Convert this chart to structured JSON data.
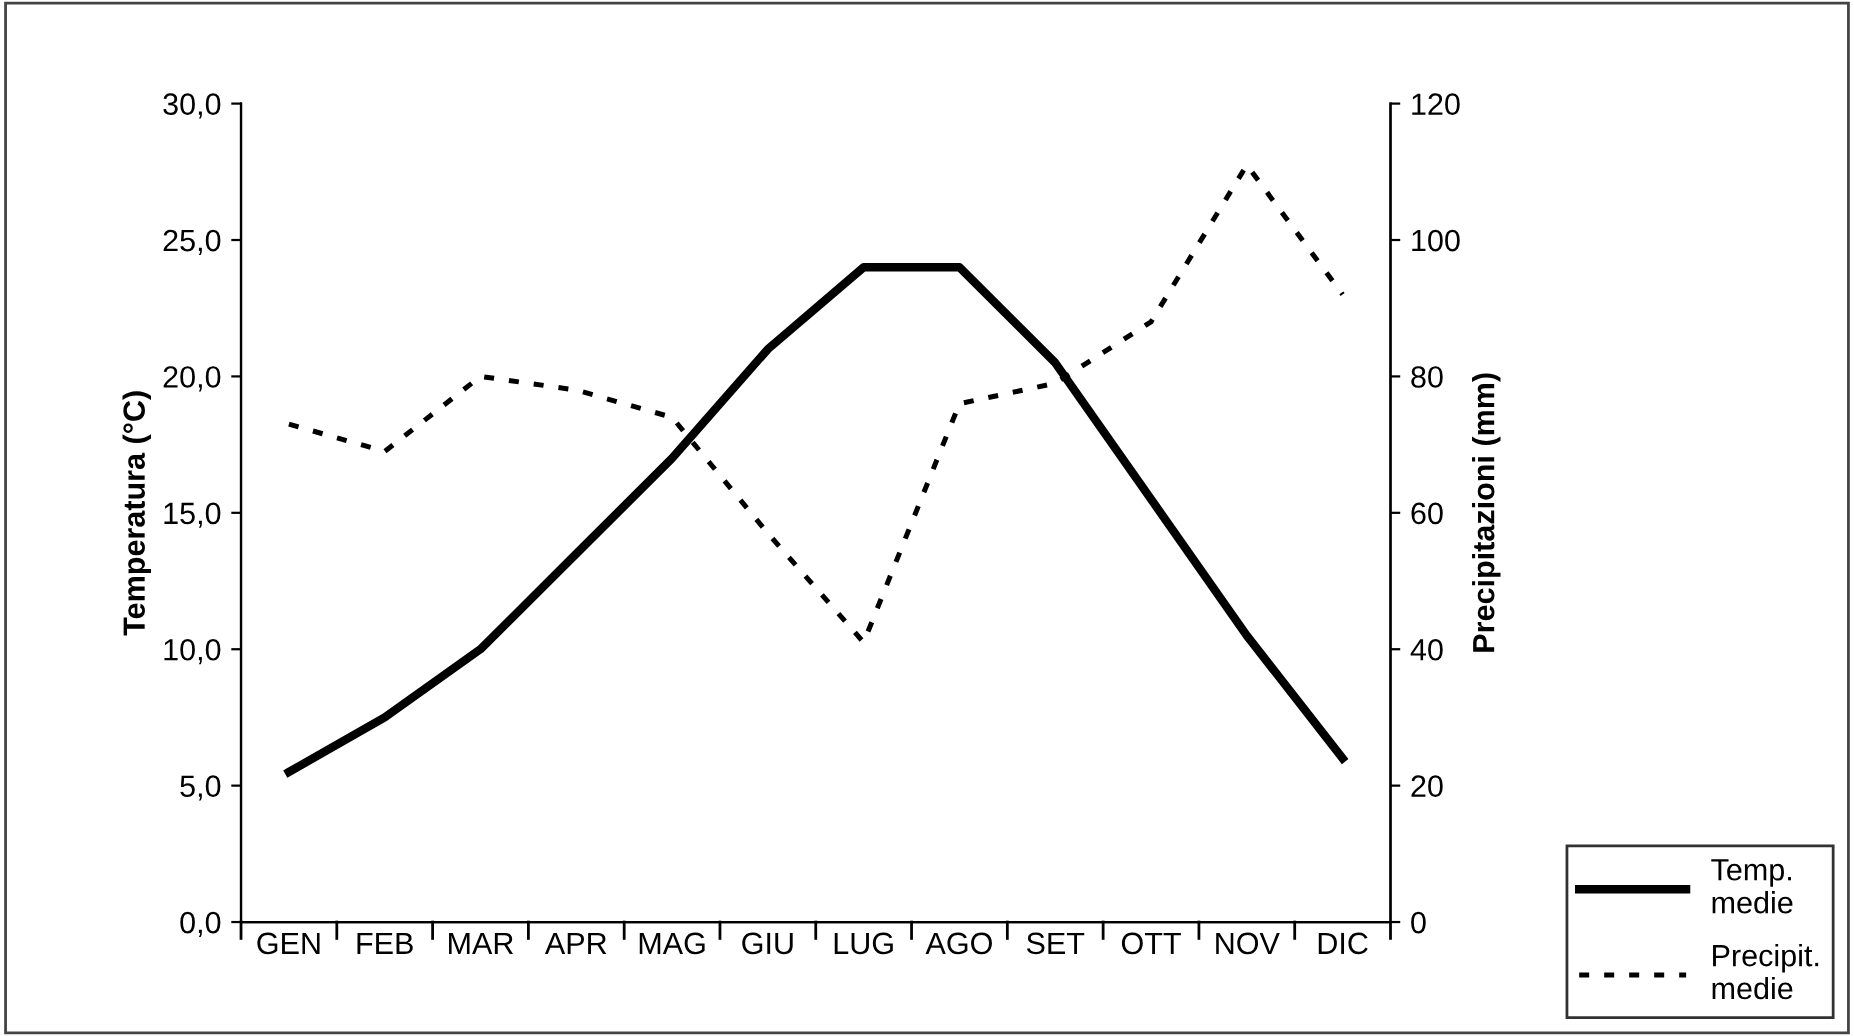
{
  "chart_data": {
    "type": "line",
    "ylabel": "Temperatura (°C)",
    "y2label": "Precipitazioni (mm)",
    "categories": [
      "GEN",
      "FEB",
      "MAR",
      "APR",
      "MAG",
      "GIU",
      "LUG",
      "AGO",
      "SET",
      "OTT",
      "NOV",
      "DIC"
    ],
    "series": [
      {
        "name": "Temp.\nmedie",
        "color": "#000000",
        "line_style": "solid",
        "values": [
          5.5,
          7.5,
          10.0,
          13.5,
          17.0,
          21.0,
          24.0,
          24.0,
          20.5,
          15.5,
          10.5,
          6.0
        ]
      },
      {
        "name": "Precipit.\nmedie",
        "color": "#000000",
        "line_style": "dotted",
        "axis": "y2",
        "values": [
          73,
          69,
          80,
          78,
          74,
          57,
          41,
          76,
          79,
          88,
          111,
          92
        ]
      }
    ],
    "ylim": [
      0,
      30
    ],
    "yticks": [
      {
        "value": 0,
        "label": "0,0"
      },
      {
        "value": 5,
        "label": "5,0"
      },
      {
        "value": 10,
        "label": "10,0"
      },
      {
        "value": 15,
        "label": "15,0"
      },
      {
        "value": 20,
        "label": "20,0"
      },
      {
        "value": 25,
        "label": "25,0"
      },
      {
        "value": 30,
        "label": "30,0"
      }
    ],
    "y2lim": [
      0,
      120
    ],
    "y2ticks": [
      0,
      20,
      40,
      60,
      80,
      100,
      120
    ],
    "grid": false,
    "legend": "bottom right",
    "marker": "none"
  }
}
